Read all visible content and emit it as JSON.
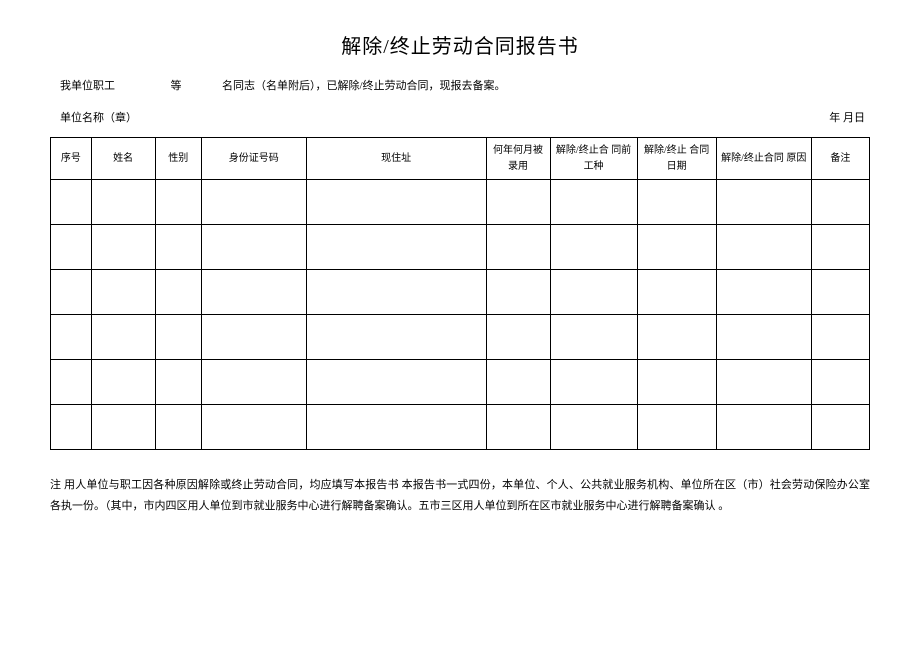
{
  "title": "解除/终止劳动合同报告书",
  "intro": {
    "part1": "我单位职工",
    "part2": "等",
    "part3": "名同志（名单附后），已解除/终止劳动合同，现报去备案。"
  },
  "header": {
    "left": "单位名称（章）",
    "right": "年 月日"
  },
  "table": {
    "columns": {
      "seq": "序号",
      "name": "姓名",
      "gender": "性别",
      "id": "身份证号码",
      "addr": "现住址",
      "hired": "何年何月被录用",
      "job": "解除/终止合 同前工种",
      "date": "解除/终止 合同日期",
      "reason": "解除/终止合同 原因",
      "remark": "备注"
    },
    "empty_rows": 6
  },
  "footnote": "注 用人单位与职工因各种原因解除或终止劳动合同，均应填写本报告书 本报告书一式四份，本单位、个人、公共就业服务机构、单位所在区（市）社会劳动保险办公室 各执一份。（其中，市内四区用人单位到市就业服务中心进行解聘备案确认。五市三区用人单位到所在区市就业服务中心进行解聘备案确认 。",
  "colors": {
    "text": "#000000",
    "background": "#ffffff",
    "border": "#000000"
  }
}
